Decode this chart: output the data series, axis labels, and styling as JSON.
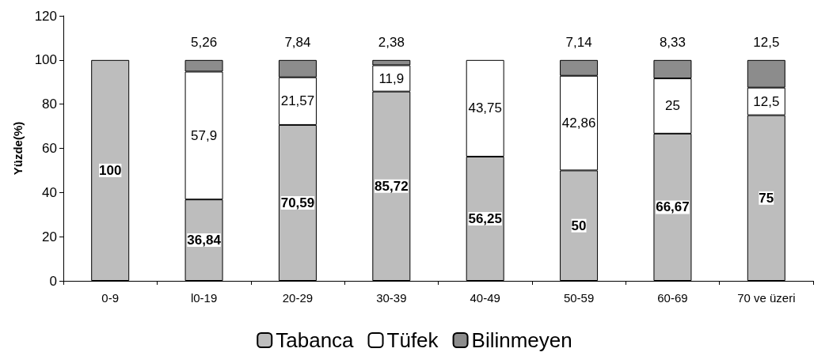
{
  "chart_data": {
    "type": "bar",
    "stacked": true,
    "ylabel": "Yüzde(%)",
    "categories": [
      "0-9",
      "l0-19",
      "20-29",
      "30-39",
      "40-49",
      "50-59",
      "60-69",
      "70 ve üzeri"
    ],
    "series": [
      {
        "name": "Tabanca",
        "color": "#bdbdbd",
        "values": [
          100,
          36.84,
          70.59,
          85.72,
          56.25,
          50,
          66.67,
          75
        ],
        "value_labels": [
          "100",
          "36,84",
          "70,59",
          "85,72",
          "56,25",
          "50",
          "66,67",
          "75"
        ]
      },
      {
        "name": "Tüfek",
        "color": "#ffffff",
        "values": [
          null,
          57.9,
          21.57,
          11.9,
          43.75,
          42.86,
          25,
          12.5
        ],
        "value_labels": [
          null,
          "57,9",
          "21,57",
          "11,9",
          "43,75",
          "42,86",
          "25",
          "12,5"
        ]
      },
      {
        "name": "Bilinmeyen",
        "color": "#8c8c8c",
        "values": [
          null,
          5.26,
          7.84,
          2.38,
          null,
          7.14,
          8.33,
          12.5
        ],
        "value_labels": [
          null,
          "5,26",
          "7,84",
          "2,38",
          null,
          "7,14",
          "8,33",
          "12,5"
        ]
      }
    ],
    "ylim": [
      0,
      120
    ],
    "yticks": [
      0,
      20,
      40,
      60,
      80,
      100,
      120
    ],
    "grid": false,
    "legend": "bottom"
  }
}
